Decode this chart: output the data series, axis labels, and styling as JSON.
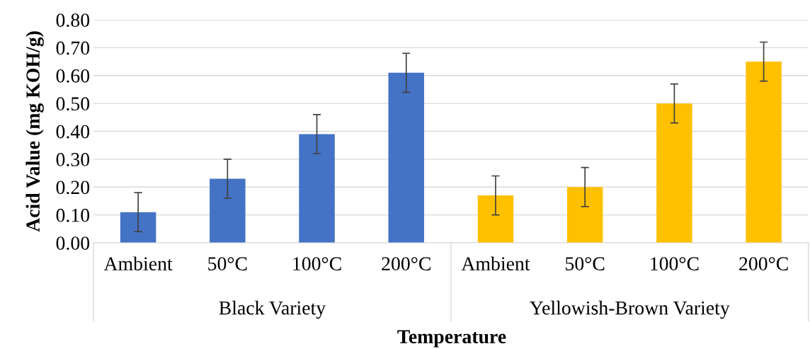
{
  "chart_data": {
    "type": "bar",
    "categories": [
      "Ambient",
      "50°C",
      "100°C",
      "200°C",
      "Ambient",
      "50°C",
      "100°C",
      "200°C"
    ],
    "values": [
      0.11,
      0.23,
      0.39,
      0.61,
      0.17,
      0.2,
      0.5,
      0.65
    ],
    "errors": [
      0.07,
      0.07,
      0.07,
      0.07,
      0.07,
      0.07,
      0.07,
      0.07
    ],
    "colors": [
      "#4472c4",
      "#4472c4",
      "#4472c4",
      "#4472c4",
      "#ffc000",
      "#ffc000",
      "#ffc000",
      "#ffc000"
    ],
    "ylim": [
      0,
      0.8
    ],
    "yticks": [
      {
        "value": 0,
        "label": "0.00"
      },
      {
        "value": 0.1,
        "label": "0.10"
      },
      {
        "value": 0.2,
        "label": "0.20"
      },
      {
        "value": 0.3,
        "label": "0.30"
      },
      {
        "value": 0.4,
        "label": "0.40"
      },
      {
        "value": 0.5,
        "label": "0.50"
      },
      {
        "value": 0.6,
        "label": "0.60"
      },
      {
        "value": 0.7,
        "label": "0.70"
      },
      {
        "value": 0.8,
        "label": "0.80"
      }
    ],
    "ylabel": "Acid Value (mg KOH/g)",
    "xlabel": "Temperature",
    "annotations": [
      "Black Variety",
      "Yellowish-Brown Variety"
    ],
    "grid": "y",
    "legend": false
  }
}
